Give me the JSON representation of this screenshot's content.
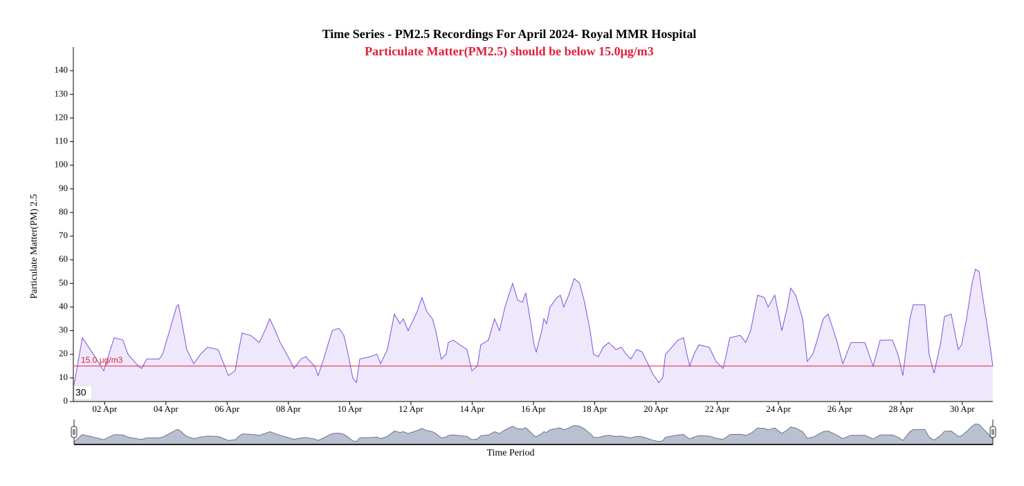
{
  "chart_data": {
    "type": "area",
    "title": "Time Series - PM2.5 Recordings For April 2024- Royal MMR Hospital",
    "subtitle": "Particulate Matter(PM2.5) should be below 15.0μg/m3",
    "x_label": "Time Period",
    "y_label": "Particulate Matter(PM) 2.5",
    "color": "#7b4fe0",
    "fill": "#efe8fc",
    "threshold": 15,
    "threshold_label": "15.0 μg/m3",
    "threshold_color": "#e0203a",
    "cursor_label": "30",
    "xlim": [
      1,
      31
    ],
    "ylim": [
      0,
      150
    ],
    "yticks": [
      0,
      10,
      20,
      30,
      40,
      50,
      60,
      70,
      80,
      90,
      100,
      110,
      120,
      130,
      140
    ],
    "xticks": [
      {
        "value": 2,
        "label": "02 Apr"
      },
      {
        "value": 4,
        "label": "04 Apr"
      },
      {
        "value": 6,
        "label": "06 Apr"
      },
      {
        "value": 8,
        "label": "08 Apr"
      },
      {
        "value": 10,
        "label": "10 Apr"
      },
      {
        "value": 12,
        "label": "12 Apr"
      },
      {
        "value": 14,
        "label": "14 Apr"
      },
      {
        "value": 16,
        "label": "16 Apr"
      },
      {
        "value": 18,
        "label": "18 Apr"
      },
      {
        "value": 20,
        "label": "20 Apr"
      },
      {
        "value": 22,
        "label": "22 Apr"
      },
      {
        "value": 24,
        "label": "24 Apr"
      },
      {
        "value": 26,
        "label": "26 Apr"
      },
      {
        "value": 28,
        "label": "28 Apr"
      },
      {
        "value": 30,
        "label": "30 Apr"
      }
    ],
    "x": [
      1.0,
      1.27,
      1.63,
      1.97,
      2.31,
      2.6,
      2.76,
      3.1,
      3.21,
      3.37,
      3.78,
      3.89,
      4.12,
      4.34,
      4.41,
      4.5,
      4.57,
      4.68,
      4.91,
      5.13,
      5.36,
      5.7,
      5.92,
      6.04,
      6.26,
      6.38,
      6.49,
      6.76,
      7.05,
      7.23,
      7.39,
      7.57,
      7.73,
      8.03,
      8.18,
      8.41,
      8.57,
      8.7,
      8.86,
      8.97,
      9.15,
      9.31,
      9.43,
      9.65,
      9.81,
      9.95,
      10.1,
      10.22,
      10.33,
      10.67,
      10.89,
      11.01,
      11.23,
      11.35,
      11.46,
      11.64,
      11.75,
      11.91,
      12.2,
      12.36,
      12.52,
      12.7,
      12.81,
      12.99,
      13.15,
      13.22,
      13.38,
      13.6,
      13.83,
      13.99,
      14.17,
      14.28,
      14.53,
      14.73,
      14.89,
      15.07,
      15.32,
      15.48,
      15.64,
      15.75,
      15.89,
      16.02,
      16.09,
      16.27,
      16.34,
      16.43,
      16.54,
      16.77,
      16.88,
      16.99,
      17.15,
      17.33,
      17.51,
      17.67,
      17.85,
      17.96,
      18.12,
      18.28,
      18.46,
      18.69,
      18.87,
      19.03,
      19.18,
      19.37,
      19.55,
      19.7,
      19.88,
      20.09,
      20.22,
      20.31,
      20.45,
      20.72,
      20.9,
      21.01,
      21.1,
      21.24,
      21.4,
      21.74,
      21.96,
      22.19,
      22.3,
      22.41,
      22.75,
      22.93,
      23.09,
      23.32,
      23.54,
      23.66,
      23.88,
      24.11,
      24.29,
      24.4,
      24.56,
      24.79,
      24.94,
      25.12,
      25.24,
      25.46,
      25.62,
      25.8,
      25.92,
      26.1,
      26.37,
      26.82,
      27.09,
      27.32,
      27.72,
      27.9,
      28.06,
      28.29,
      28.4,
      28.78,
      28.92,
      29.08,
      29.3,
      29.42,
      29.64,
      29.87,
      29.98,
      30.14,
      30.32,
      30.43,
      30.55,
      30.66,
      30.84,
      31.0
    ],
    "values": [
      7,
      27,
      20,
      13,
      27,
      26,
      20,
      15,
      14,
      18,
      18,
      20,
      30,
      40,
      41,
      35,
      30,
      22,
      16,
      20,
      23,
      22,
      15,
      11,
      13,
      22,
      29,
      28,
      25,
      30,
      35,
      30,
      25,
      18,
      14,
      18,
      19,
      17,
      15,
      11,
      18,
      25,
      30,
      31,
      28,
      20,
      10,
      8,
      18,
      19,
      20,
      16,
      22,
      30,
      37,
      33,
      35,
      30,
      38,
      44,
      38,
      35,
      30,
      18,
      20,
      25,
      26,
      24,
      22,
      13,
      15,
      24,
      26,
      35,
      30,
      40,
      50,
      43,
      42,
      46,
      35,
      24,
      21,
      30,
      35,
      33,
      40,
      44,
      45,
      40,
      45,
      52,
      50,
      42,
      30,
      20,
      19,
      23,
      25,
      22,
      23,
      20,
      18,
      22,
      21,
      17,
      12,
      8,
      10,
      20,
      22,
      26,
      27,
      20,
      15,
      20,
      24,
      23,
      17,
      14,
      20,
      27,
      28,
      25,
      30,
      45,
      44,
      40,
      45,
      30,
      40,
      48,
      45,
      35,
      17,
      20,
      25,
      35,
      37,
      30,
      25,
      16,
      25,
      25,
      15,
      26,
      26,
      20,
      11,
      35,
      41,
      41,
      20,
      12,
      25,
      36,
      37,
      22,
      24,
      35,
      50,
      56,
      55,
      45,
      30,
      15
    ]
  }
}
